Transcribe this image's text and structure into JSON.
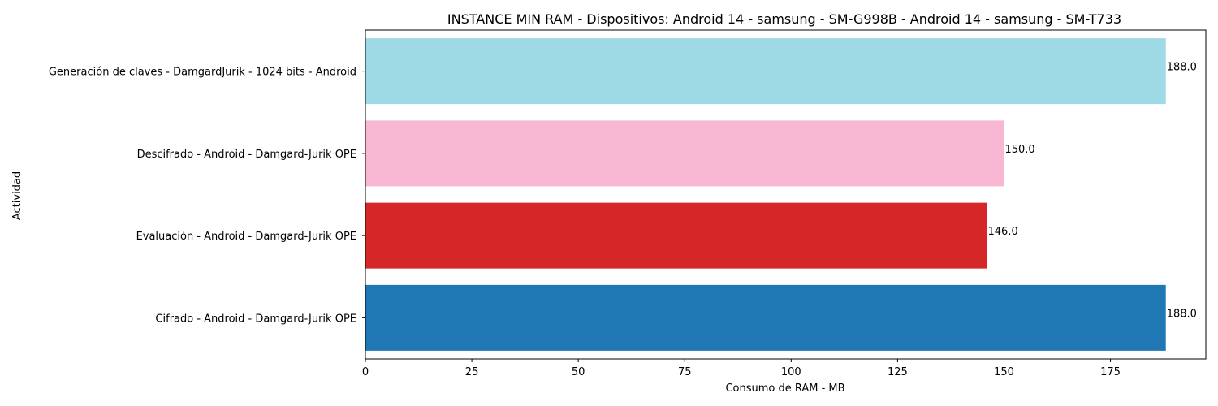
{
  "chart_data": {
    "type": "bar",
    "orientation": "horizontal",
    "title": "INSTANCE MIN RAM - Dispositivos: Android 14 - samsung - SM-G998B - Android 14 - samsung - SM-T733",
    "xlabel": "Consumo de RAM - MB",
    "ylabel": "Actividad",
    "xlim": [
      0,
      197.4
    ],
    "xticks": [
      0,
      25,
      50,
      75,
      100,
      125,
      150,
      175
    ],
    "categories": [
      "Cifrado - Android - Damgard-Jurik OPE",
      "Evaluación - Android - Damgard-Jurik OPE",
      "Descifrado - Android - Damgard-Jurik OPE",
      "Generación de claves - DamgardJurik - 1024 bits - Android"
    ],
    "values": [
      188.0,
      146.0,
      150.0,
      188.0
    ],
    "value_labels": [
      "188.0",
      "146.0",
      "150.0",
      "188.0"
    ],
    "colors": [
      "#1f77b4",
      "#d62728",
      "#f7b6d2",
      "#9edae5"
    ],
    "grid": false,
    "legend": "none"
  }
}
